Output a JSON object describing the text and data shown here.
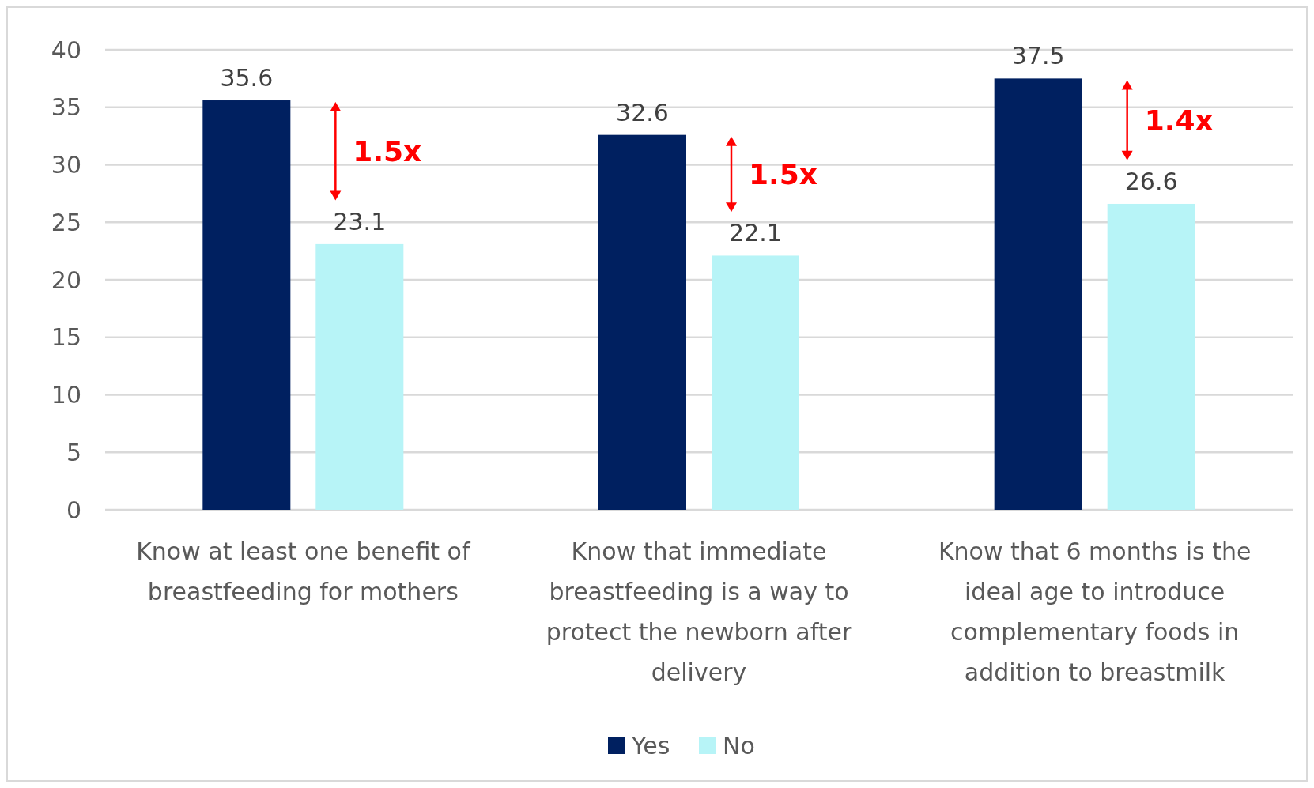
{
  "chart_data": {
    "type": "bar",
    "categories": [
      "Know at least one benefit of breastfeeding for mothers",
      "Know that immediate breastfeeding is a way to protect the newborn after delivery",
      "Know that 6 months is the ideal age to introduce complementary foods in addition to breastmilk"
    ],
    "series": [
      {
        "name": "Yes",
        "color": "#002060",
        "values": [
          35.6,
          32.6,
          37.5
        ]
      },
      {
        "name": "No",
        "color": "#b7f4f7",
        "values": [
          23.1,
          22.1,
          26.6
        ]
      }
    ],
    "ylim": [
      0,
      40
    ],
    "yticks": [
      0,
      5,
      10,
      15,
      20,
      25,
      30,
      35,
      40
    ],
    "grid": "y",
    "legend": "bottom",
    "data_labels": true,
    "annotations": [
      "1.5x",
      "1.5x",
      "1.4x"
    ]
  }
}
